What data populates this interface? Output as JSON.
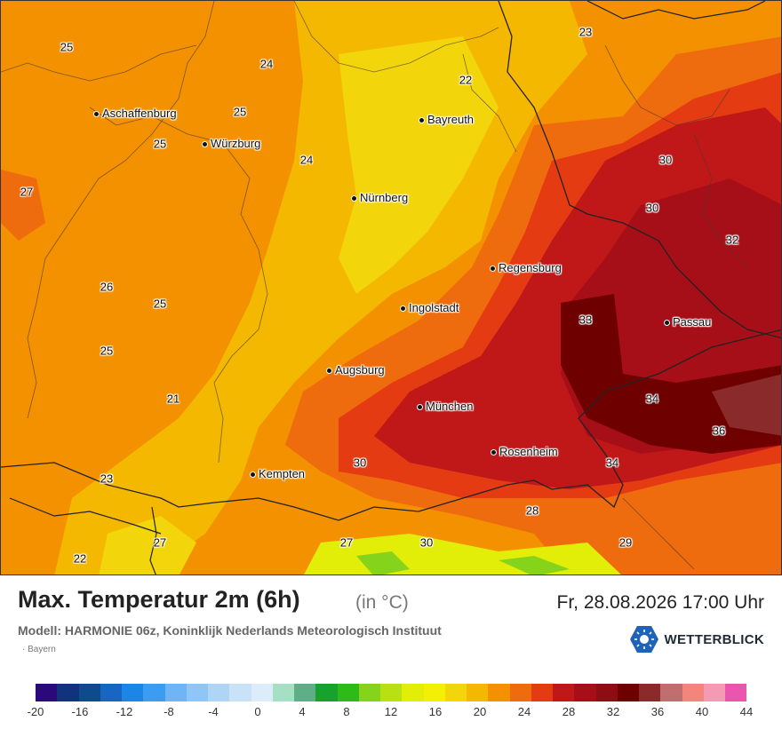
{
  "map": {
    "cities": [
      {
        "name": "Aschaffenburg"
      },
      {
        "name": "Würzburg"
      },
      {
        "name": "Bayreuth"
      },
      {
        "name": "Nürnberg"
      },
      {
        "name": "Regensburg"
      },
      {
        "name": "Ingolstadt"
      },
      {
        "name": "Passau"
      },
      {
        "name": "Augsburg"
      },
      {
        "name": "München"
      },
      {
        "name": "Rosenheim"
      },
      {
        "name": "Kempten"
      }
    ],
    "values": [
      "25",
      "24",
      "25",
      "25",
      "24",
      "27",
      "26",
      "25",
      "25",
      "21",
      "23",
      "27",
      "22",
      "23",
      "22",
      "30",
      "30",
      "32",
      "33",
      "34",
      "36",
      "34",
      "30",
      "28",
      "27",
      "30",
      "29"
    ]
  },
  "footer": {
    "title": "Max. Temperatur 2m (6h)",
    "unit": "(in °C)",
    "datetime": "Fr, 28.08.2026 17:00 Uhr",
    "model": "Modell: HARMONIE 06z, Koninklijk Nederlands Meteorologisch Instituut",
    "region": "Bayern",
    "brand": "WETTERBLICK",
    "brand_color": "#1e63b8"
  },
  "legend": {
    "colors": [
      "#2a0a7a",
      "#11337e",
      "#0f4a8c",
      "#1666c2",
      "#1c86e6",
      "#3b9cf2",
      "#6fb5f5",
      "#90c6f5",
      "#aed4f6",
      "#c9e2f8",
      "#dcecfa",
      "#a6e0c4",
      "#5fae88",
      "#16a22c",
      "#2ebb1a",
      "#86d31c",
      "#b8e012",
      "#e2ee08",
      "#f4f003",
      "#f3d50c",
      "#f5b800",
      "#f39100",
      "#ef6c0e",
      "#e43b13",
      "#c01818",
      "#a70f18",
      "#8e0d15",
      "#6e0000",
      "#8b2a2a",
      "#c06e6e",
      "#f4857d",
      "#f59ab5",
      "#ea55ae"
    ],
    "ticks": [
      "-20",
      "-16",
      "-12",
      "-8",
      "-4",
      "0",
      "4",
      "8",
      "12",
      "16",
      "20",
      "24",
      "28",
      "32",
      "36",
      "40",
      "44"
    ]
  }
}
